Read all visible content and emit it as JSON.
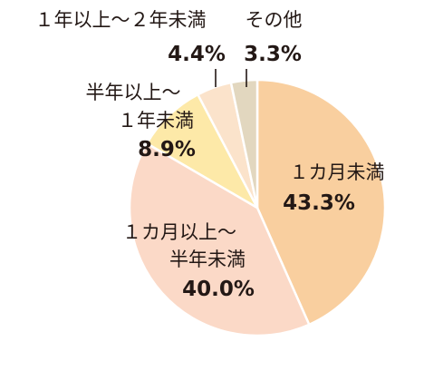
{
  "chart_data": {
    "type": "pie",
    "title": "",
    "start_angle_deg": 0,
    "direction": "clockwise",
    "slices": [
      {
        "label_lines": [
          "１カ月未満"
        ],
        "value": 43.3,
        "display": "43.3%",
        "color": "#f9cf9f"
      },
      {
        "label_lines": [
          "１カ月以上～",
          "半年未満"
        ],
        "value": 40.0,
        "display": "40.0%",
        "color": "#fbd9c7"
      },
      {
        "label_lines": [
          "半年以上～",
          "１年未満"
        ],
        "value": 8.9,
        "display": "8.9%",
        "color": "#fde9a8"
      },
      {
        "label_lines": [
          "１年以上～２年未満"
        ],
        "value": 4.4,
        "display": "4.4%",
        "color": "#fbe3cb"
      },
      {
        "label_lines": [
          "その他"
        ],
        "value": 3.3,
        "display": "3.3%",
        "color": "#e2d7bf"
      }
    ],
    "legend": "none"
  }
}
